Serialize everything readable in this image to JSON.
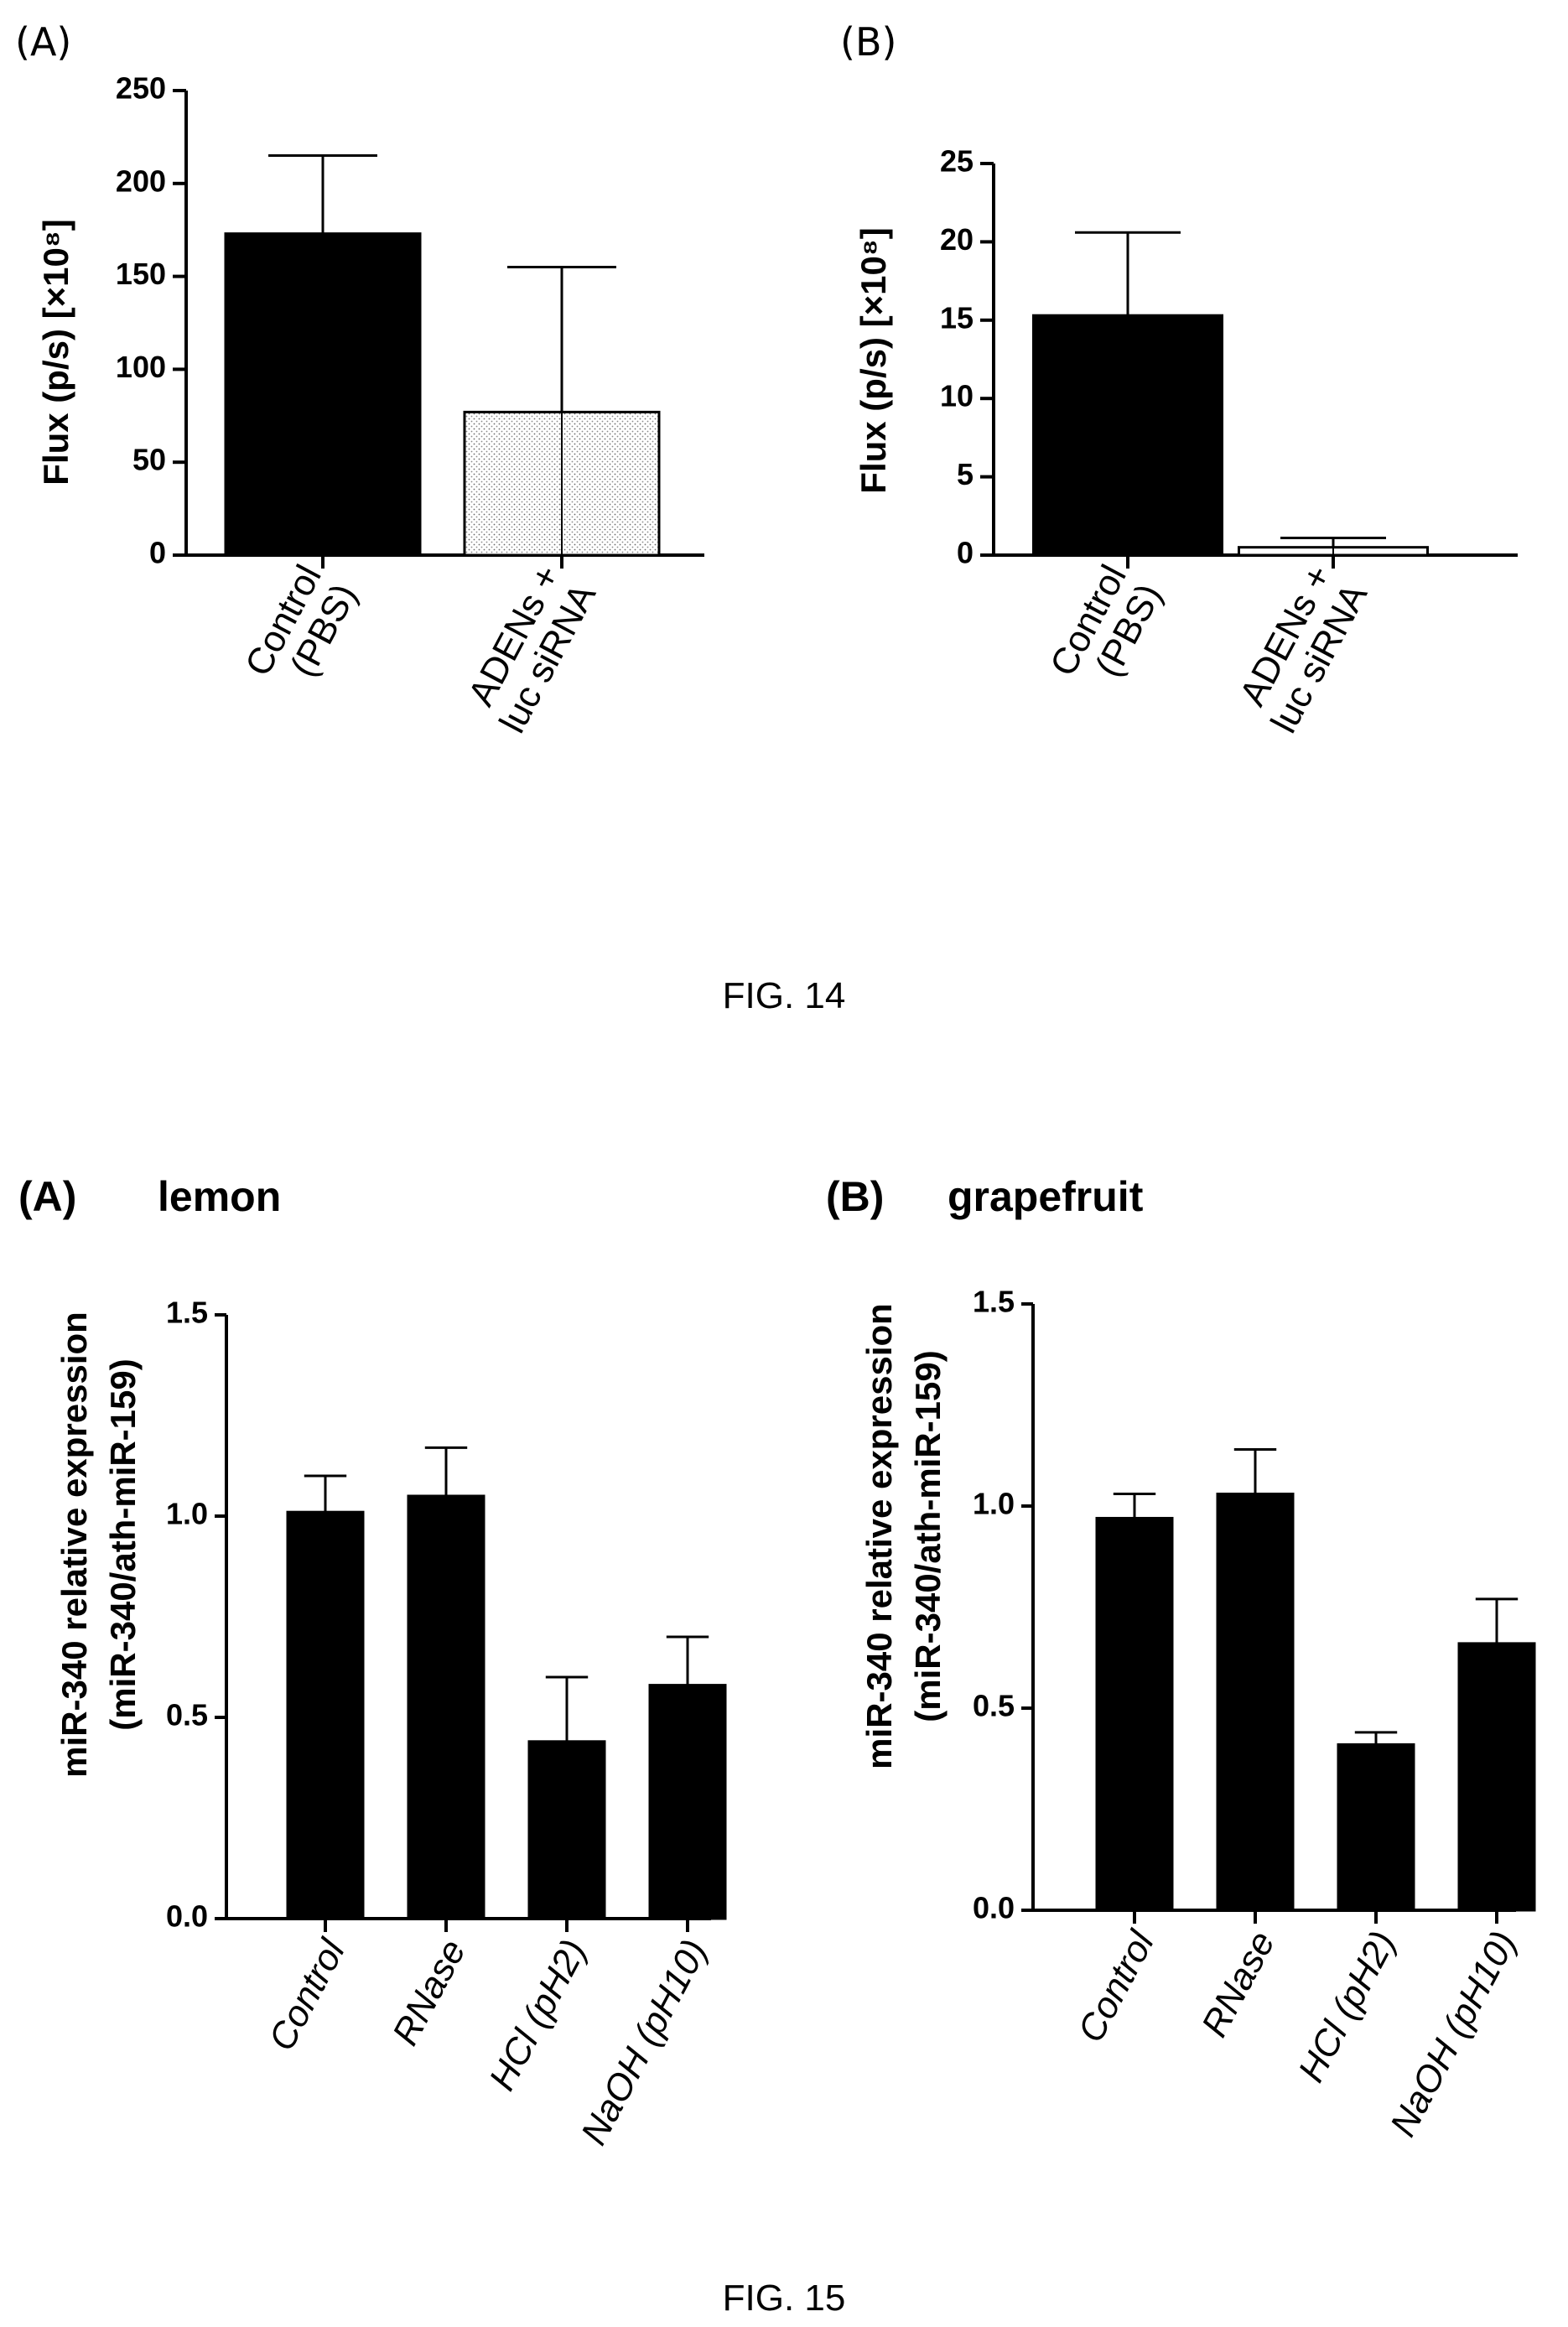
{
  "figures": [
    {
      "caption": "FIG. 14"
    },
    {
      "caption": "FIG. 15"
    }
  ],
  "chart_data": [
    {
      "panel": "(A)",
      "title": "",
      "type": "bar",
      "ylabel": "Flux (p/s) [×10⁸]",
      "xlabel": "",
      "ylim": [
        0,
        250
      ],
      "yticks": [
        "0",
        "50",
        "100",
        "150",
        "200",
        "250"
      ],
      "categories": [
        [
          "Control",
          "(PBS)"
        ],
        [
          "ADENs +",
          "luc siRNA"
        ]
      ],
      "values": [
        173,
        77
      ],
      "errors": [
        42,
        78
      ],
      "fills": [
        "#000000",
        "dotted"
      ],
      "grid": false,
      "legend": "none"
    },
    {
      "panel": "(B)",
      "title": "",
      "type": "bar",
      "ylabel": "Flux (p/s) [×10⁸]",
      "xlabel": "",
      "ylim": [
        0,
        25
      ],
      "yticks": [
        "0",
        "5",
        "10",
        "15",
        "20",
        "25"
      ],
      "categories": [
        [
          "Control",
          "(PBS)"
        ],
        [
          "ADENs +",
          "luc siRNA"
        ]
      ],
      "values": [
        15.3,
        0.5
      ],
      "errors": [
        5.3,
        0.6
      ],
      "fills": [
        "#000000",
        "#ffffff"
      ],
      "grid": false,
      "legend": "none"
    },
    {
      "panel": "(A)",
      "title": "lemon",
      "type": "bar",
      "ylabel": "miR-340 relative expression",
      "ylabel2": "(miR-340/ath-miR-159)",
      "xlabel": "",
      "ylim": [
        0,
        1.5
      ],
      "yticks": [
        "0.0",
        "0.5",
        "1.0",
        "1.5"
      ],
      "categories": [
        [
          "Control"
        ],
        [
          "RNase"
        ],
        [
          "HCl (pH2)"
        ],
        [
          "NaOH (pH10)"
        ]
      ],
      "values": [
        1.01,
        1.05,
        0.44,
        0.58
      ],
      "errors": [
        0.09,
        0.12,
        0.16,
        0.12
      ],
      "fills": [
        "#000000",
        "#000000",
        "#000000",
        "#000000"
      ],
      "grid": false,
      "legend": "none"
    },
    {
      "panel": "(B)",
      "title": "grapefruit",
      "type": "bar",
      "ylabel": "miR-340 relative expression",
      "ylabel2": "(miR-340/ath-miR-159)",
      "xlabel": "",
      "ylim": [
        0,
        1.5
      ],
      "yticks": [
        "0.0",
        "0.5",
        "1.0",
        "1.5"
      ],
      "categories": [
        [
          "Control"
        ],
        [
          "RNase"
        ],
        [
          "HCl (pH2)"
        ],
        [
          "NaOH (pH10)"
        ]
      ],
      "values": [
        0.97,
        1.03,
        0.41,
        0.66
      ],
      "errors": [
        0.06,
        0.11,
        0.03,
        0.11
      ],
      "fills": [
        "#000000",
        "#000000",
        "#000000",
        "#000000"
      ],
      "grid": false,
      "legend": "none"
    }
  ]
}
